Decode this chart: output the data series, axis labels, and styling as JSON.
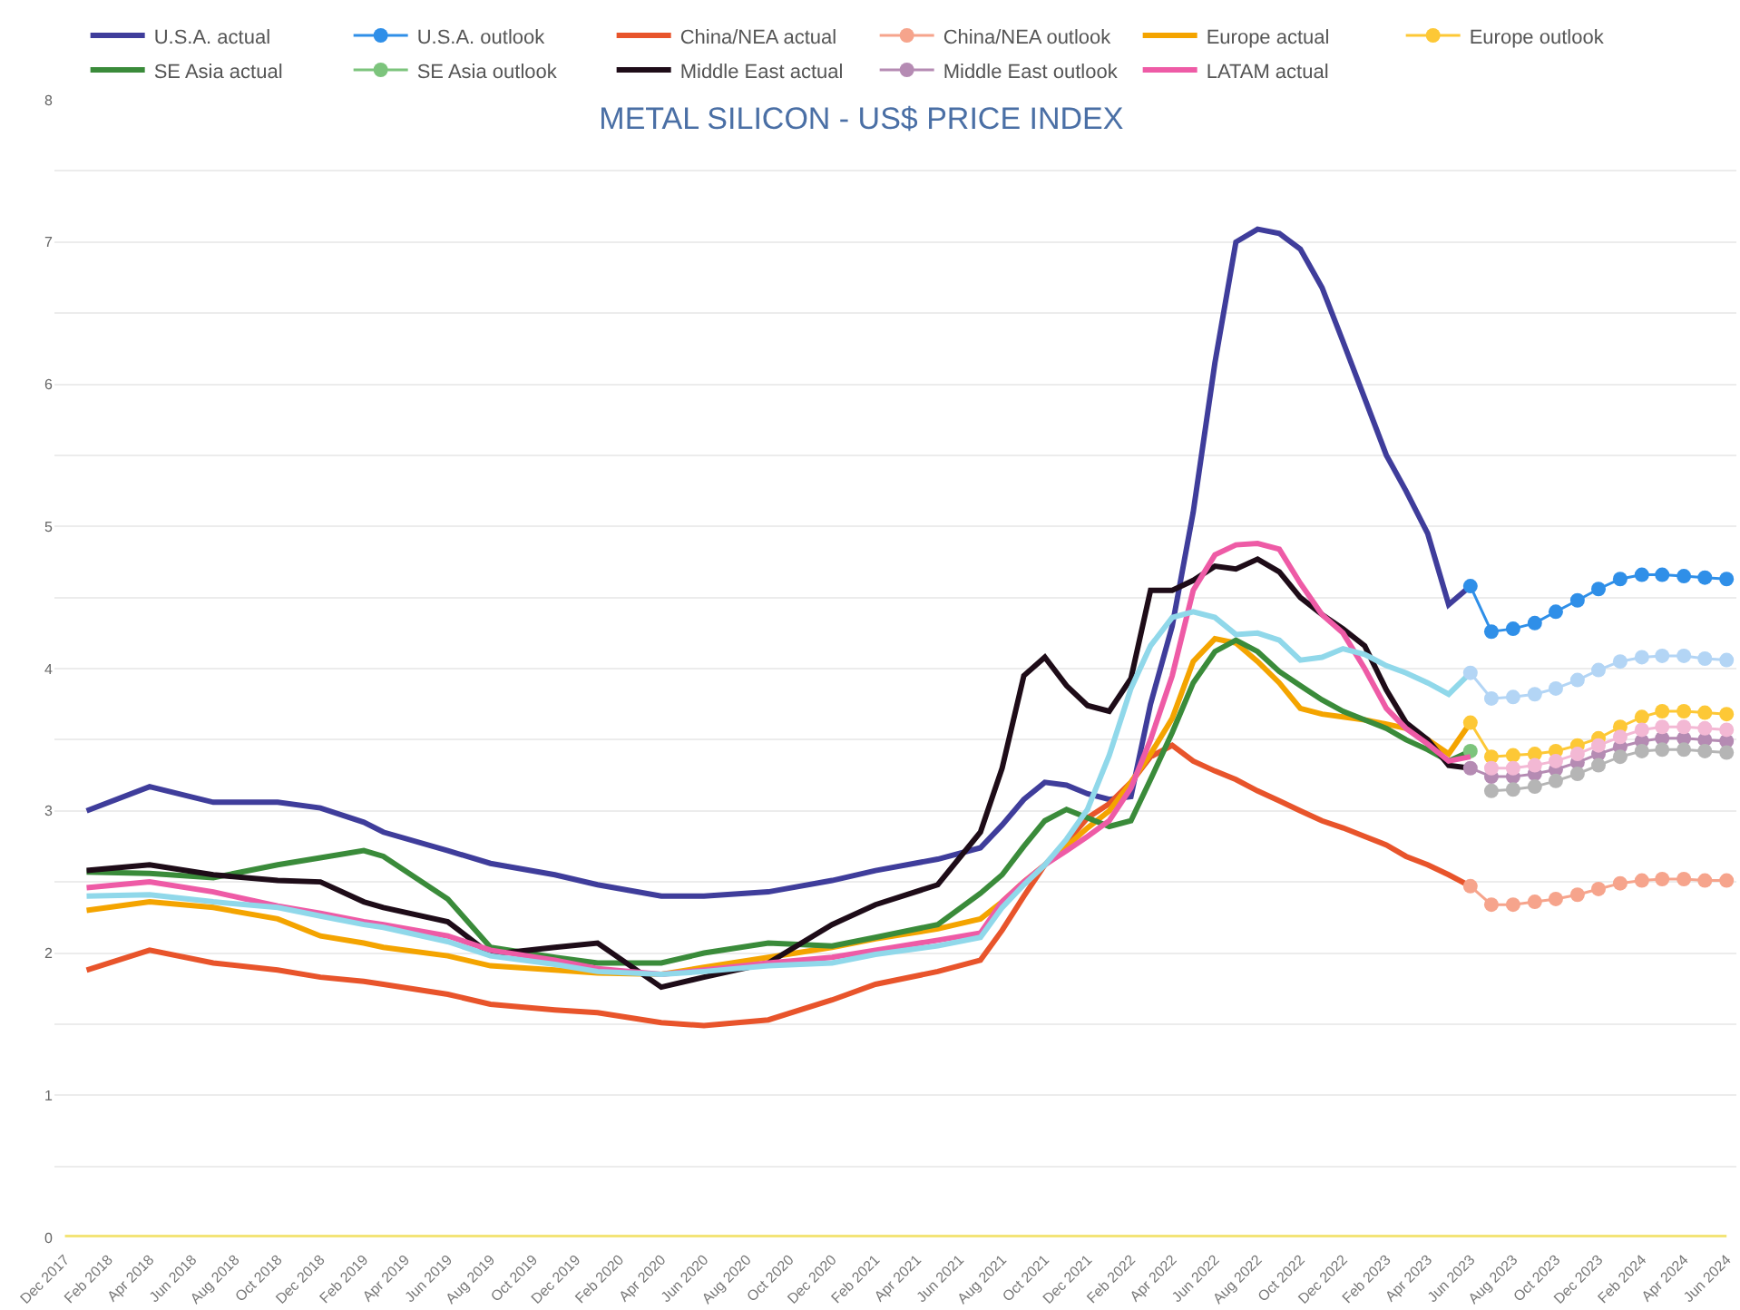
{
  "chart_data": {
    "type": "line",
    "title": "METAL SILICON - US$ PRICE INDEX",
    "legend": "top",
    "grid": "y",
    "marker": "none",
    "xlim": [
      "2017-11-16",
      "2024-06-15"
    ],
    "xticks": [
      {
        "value": "2017-12",
        "label": "Dec 2017"
      },
      {
        "value": "2018-02",
        "label": "Feb 2018"
      },
      {
        "value": "2018-04",
        "label": "Apr 2018"
      },
      {
        "value": "2018-06",
        "label": "Jun 2018"
      },
      {
        "value": "2018-08",
        "label": "Aug 2018"
      },
      {
        "value": "2018-10",
        "label": "Oct 2018"
      },
      {
        "value": "2018-12",
        "label": "Dec 2018"
      },
      {
        "value": "2019-02",
        "label": "Feb 2019"
      },
      {
        "value": "2019-04",
        "label": "Apr 2019"
      },
      {
        "value": "2019-06",
        "label": "Jun 2019"
      },
      {
        "value": "2019-08",
        "label": "Aug 2019"
      },
      {
        "value": "2019-10",
        "label": "Oct 2019"
      },
      {
        "value": "2019-12",
        "label": "Dec 2019"
      },
      {
        "value": "2020-02",
        "label": "Feb 2020"
      },
      {
        "value": "2020-04",
        "label": "Apr 2020"
      },
      {
        "value": "2020-06",
        "label": "Jun 2020"
      },
      {
        "value": "2020-08",
        "label": "Aug 2020"
      },
      {
        "value": "2020-10",
        "label": "Oct 2020"
      },
      {
        "value": "2020-12",
        "label": "Dec 2020"
      },
      {
        "value": "2021-02",
        "label": "Feb 2021"
      },
      {
        "value": "2021-04",
        "label": "Apr 2021"
      },
      {
        "value": "2021-06",
        "label": "Jun 2021"
      },
      {
        "value": "2021-08",
        "label": "Aug 2021"
      },
      {
        "value": "2021-10",
        "label": "Oct 2021"
      },
      {
        "value": "2021-12",
        "label": "Dec 2021"
      },
      {
        "value": "2022-02",
        "label": "Feb 2022"
      },
      {
        "value": "2022-04",
        "label": "Apr 2022"
      },
      {
        "value": "2022-06",
        "label": "Jun 2022"
      },
      {
        "value": "2022-08",
        "label": "Aug 2022"
      },
      {
        "value": "2022-10",
        "label": "Oct 2022"
      },
      {
        "value": "2022-12",
        "label": "Dec 2022"
      },
      {
        "value": "2023-02",
        "label": "Feb 2023"
      },
      {
        "value": "2023-04",
        "label": "Apr 2023"
      },
      {
        "value": "2023-06",
        "label": "Jun 2023"
      },
      {
        "value": "2023-08",
        "label": "Aug 2023"
      },
      {
        "value": "2023-10",
        "label": "Oct 2023"
      },
      {
        "value": "2023-12",
        "label": "Dec 2023"
      },
      {
        "value": "2024-02",
        "label": "Feb 2024"
      },
      {
        "value": "2024-04",
        "label": "Apr 2024"
      },
      {
        "value": "2024-06",
        "label": "Jun 2024"
      }
    ],
    "ylim": [
      0,
      8
    ],
    "yticks": [
      0,
      {
        "value": 0.5,
        "label": null
      },
      1,
      {
        "value": 1.5,
        "label": null
      },
      2,
      {
        "value": 2.5,
        "label": null
      },
      3,
      {
        "value": 3.5,
        "label": null
      },
      4,
      {
        "value": 4.5,
        "label": null
      },
      5,
      {
        "value": 5.5,
        "label": null
      },
      6,
      {
        "value": 6.5,
        "label": null
      },
      7,
      {
        "value": 7.5,
        "label": null
      },
      8
    ],
    "x": [
      "2018-01",
      "2018-04",
      "2018-07",
      "2018-10",
      "2018-12",
      "2019-02",
      "2019-03",
      "2019-06",
      "2019-08",
      "2019-11",
      "2020-01",
      "2020-04",
      "2020-06",
      "2020-09",
      "2020-12",
      "2021-02",
      "2021-05",
      "2021-07",
      "2021-08",
      "2021-09",
      "2021-10",
      "2021-11",
      "2021-12",
      "2022-01",
      "2022-02",
      "2022-03",
      "2022-04",
      "2022-05",
      "2022-06",
      "2022-07",
      "2022-08",
      "2022-09",
      "2022-10",
      "2022-11",
      "2022-12",
      "2023-01",
      "2023-02",
      "2023-03",
      "2023-04",
      "2023-05",
      "2023-06"
    ],
    "series": [
      {
        "name": "U.S.A. actual",
        "color": "#3f3d9b",
        "values": [
          3.0,
          3.17,
          3.06,
          3.06,
          3.02,
          2.92,
          2.85,
          2.72,
          2.63,
          2.55,
          2.48,
          2.4,
          2.4,
          2.43,
          2.51,
          2.58,
          2.66,
          2.74,
          2.9,
          3.08,
          3.2,
          3.18,
          3.12,
          3.08,
          3.1,
          3.75,
          4.3,
          5.1,
          6.15,
          7.0,
          7.09,
          7.06,
          6.95,
          6.68,
          6.3,
          5.9,
          5.5,
          5.25,
          4.95,
          4.45,
          4.58
        ]
      },
      {
        "name": "U.S.A. outlook",
        "color": "#2f8fe8",
        "marker": "circle",
        "x": [
          "2023-06",
          "2023-07",
          "2023-08",
          "2023-09",
          "2023-10",
          "2023-11",
          "2023-12",
          "2024-01",
          "2024-02",
          "2024-03",
          "2024-04",
          "2024-05",
          "2024-06"
        ],
        "values": [
          4.58,
          4.26,
          4.28,
          4.32,
          4.4,
          4.48,
          4.56,
          4.63,
          4.66,
          4.66,
          4.65,
          4.64,
          4.63
        ]
      },
      {
        "name": "China/NEA actual",
        "color": "#e8542b",
        "values": [
          1.88,
          2.02,
          1.93,
          1.88,
          1.83,
          1.8,
          1.78,
          1.71,
          1.64,
          1.6,
          1.58,
          1.51,
          1.49,
          1.53,
          1.67,
          1.78,
          1.87,
          1.95,
          2.16,
          2.4,
          2.62,
          2.78,
          2.95,
          3.05,
          3.2,
          3.38,
          3.46,
          3.35,
          3.28,
          3.22,
          3.14,
          3.07,
          3.0,
          2.93,
          2.88,
          2.82,
          2.76,
          2.68,
          2.62,
          2.55,
          2.47
        ]
      },
      {
        "name": "China/NEA outlook",
        "color": "#f6a48c",
        "marker": "circle",
        "x": [
          "2023-06",
          "2023-07",
          "2023-08",
          "2023-09",
          "2023-10",
          "2023-11",
          "2023-12",
          "2024-01",
          "2024-02",
          "2024-03",
          "2024-04",
          "2024-05",
          "2024-06"
        ],
        "values": [
          2.47,
          2.34,
          2.34,
          2.36,
          2.38,
          2.41,
          2.45,
          2.49,
          2.51,
          2.52,
          2.52,
          2.51,
          2.51
        ]
      },
      {
        "name": "Europe actual",
        "color": "#f4a400",
        "values": [
          2.3,
          2.36,
          2.32,
          2.24,
          2.12,
          2.07,
          2.04,
          1.98,
          1.91,
          1.88,
          1.86,
          1.85,
          1.9,
          1.97,
          2.04,
          2.1,
          2.17,
          2.24,
          2.36,
          2.5,
          2.62,
          2.75,
          2.88,
          3.0,
          3.2,
          3.4,
          3.65,
          4.05,
          4.21,
          4.18,
          4.05,
          3.9,
          3.72,
          3.68,
          3.66,
          3.64,
          3.61,
          3.58,
          3.5,
          3.4,
          3.62
        ]
      },
      {
        "name": "Europe outlook",
        "color": "#fdc836",
        "marker": "circle",
        "x": [
          "2023-06",
          "2023-07",
          "2023-08",
          "2023-09",
          "2023-10",
          "2023-11",
          "2023-12",
          "2024-01",
          "2024-02",
          "2024-03",
          "2024-04",
          "2024-05",
          "2024-06"
        ],
        "values": [
          3.62,
          3.38,
          3.39,
          3.4,
          3.42,
          3.46,
          3.51,
          3.59,
          3.66,
          3.7,
          3.7,
          3.69,
          3.68
        ]
      },
      {
        "name": "SE Asia actual",
        "color": "#3a8b3a",
        "values": [
          2.57,
          2.56,
          2.53,
          2.62,
          2.67,
          2.72,
          2.68,
          2.38,
          2.04,
          1.97,
          1.93,
          1.93,
          2.0,
          2.07,
          2.05,
          2.11,
          2.2,
          2.42,
          2.55,
          2.75,
          2.93,
          3.01,
          2.95,
          2.89,
          2.93,
          3.22,
          3.55,
          3.9,
          4.12,
          4.2,
          4.12,
          3.98,
          3.88,
          3.78,
          3.7,
          3.64,
          3.58,
          3.5,
          3.43,
          3.35,
          3.42
        ]
      },
      {
        "name": "SE Asia outlook",
        "color": "#7cc47c",
        "marker": "circle",
        "x": [
          "2023-06"
        ],
        "values": [
          3.42
        ]
      },
      {
        "name": "Middle East actual",
        "color": "#1e0c18",
        "values": [
          2.58,
          2.62,
          2.55,
          2.51,
          2.5,
          2.36,
          2.32,
          2.22,
          1.99,
          2.04,
          2.07,
          1.76,
          1.83,
          1.93,
          2.2,
          2.34,
          2.48,
          2.85,
          3.3,
          3.95,
          4.08,
          3.88,
          3.74,
          3.7,
          3.93,
          4.55,
          4.55,
          4.62,
          4.72,
          4.7,
          4.77,
          4.68,
          4.5,
          4.38,
          4.28,
          4.16,
          3.85,
          3.62,
          3.5,
          3.32,
          3.3
        ]
      },
      {
        "name": "Middle East outlook",
        "color": "#b58bb3",
        "marker": "circle",
        "x": [
          "2023-06",
          "2023-07",
          "2023-08",
          "2023-09",
          "2023-10",
          "2023-11",
          "2023-12",
          "2024-01",
          "2024-02",
          "2024-03",
          "2024-04",
          "2024-05",
          "2024-06"
        ],
        "values": [
          3.3,
          3.24,
          3.24,
          3.26,
          3.29,
          3.34,
          3.4,
          3.45,
          3.49,
          3.51,
          3.51,
          3.5,
          3.49
        ]
      },
      {
        "name": "LATAM actual",
        "color": "#ee5ba6",
        "values": [
          2.46,
          2.5,
          2.43,
          2.33,
          2.28,
          2.22,
          2.2,
          2.12,
          2.02,
          1.95,
          1.89,
          1.85,
          1.88,
          1.93,
          1.97,
          2.02,
          2.09,
          2.14,
          2.36,
          2.5,
          2.62,
          2.72,
          2.82,
          2.93,
          3.16,
          3.5,
          3.95,
          4.55,
          4.8,
          4.87,
          4.88,
          4.84,
          4.6,
          4.38,
          4.25,
          4.0,
          3.72,
          3.58,
          3.47,
          3.35,
          3.38
        ]
      },
      {
        "color": "#f3b8d4",
        "marker": "circle",
        "x": [
          "2023-07",
          "2023-08",
          "2023-09",
          "2023-10",
          "2023-11",
          "2023-12",
          "2024-01",
          "2024-02",
          "2024-03",
          "2024-04",
          "2024-05",
          "2024-06"
        ],
        "values": [
          3.3,
          3.3,
          3.32,
          3.35,
          3.4,
          3.46,
          3.52,
          3.57,
          3.59,
          3.59,
          3.58,
          3.57
        ]
      },
      {
        "color": "#90d8ea",
        "values": [
          2.4,
          2.41,
          2.36,
          2.32,
          2.26,
          2.2,
          2.18,
          2.08,
          1.98,
          1.92,
          1.87,
          1.85,
          1.87,
          1.91,
          1.93,
          1.99,
          2.05,
          2.11,
          2.32,
          2.48,
          2.62,
          2.8,
          3.01,
          3.39,
          3.86,
          4.16,
          4.36,
          4.4,
          4.36,
          4.24,
          4.25,
          4.2,
          4.06,
          4.08,
          4.14,
          4.1,
          4.02,
          3.97,
          3.9,
          3.82,
          3.97
        ]
      },
      {
        "color": "#b3d5f5",
        "marker": "circle",
        "x": [
          "2023-06",
          "2023-07",
          "2023-08",
          "2023-09",
          "2023-10",
          "2023-11",
          "2023-12",
          "2024-01",
          "2024-02",
          "2024-03",
          "2024-04",
          "2024-05",
          "2024-06"
        ],
        "values": [
          3.97,
          3.79,
          3.8,
          3.82,
          3.86,
          3.92,
          3.99,
          4.05,
          4.08,
          4.09,
          4.09,
          4.07,
          4.06
        ]
      },
      {
        "color": "#b5b5b5",
        "marker": "circle",
        "x": [
          "2023-07",
          "2023-08",
          "2023-09",
          "2023-10",
          "2023-11",
          "2023-12",
          "2024-01",
          "2024-02",
          "2024-03",
          "2024-04",
          "2024-05",
          "2024-06"
        ],
        "values": [
          3.14,
          3.15,
          3.17,
          3.21,
          3.26,
          3.32,
          3.38,
          3.42,
          3.43,
          3.43,
          3.42,
          3.41
        ]
      },
      {
        "color": "#f3e477",
        "x": [
          "2017-12",
          "2024-06"
        ],
        "values": [
          0,
          0
        ]
      }
    ]
  }
}
